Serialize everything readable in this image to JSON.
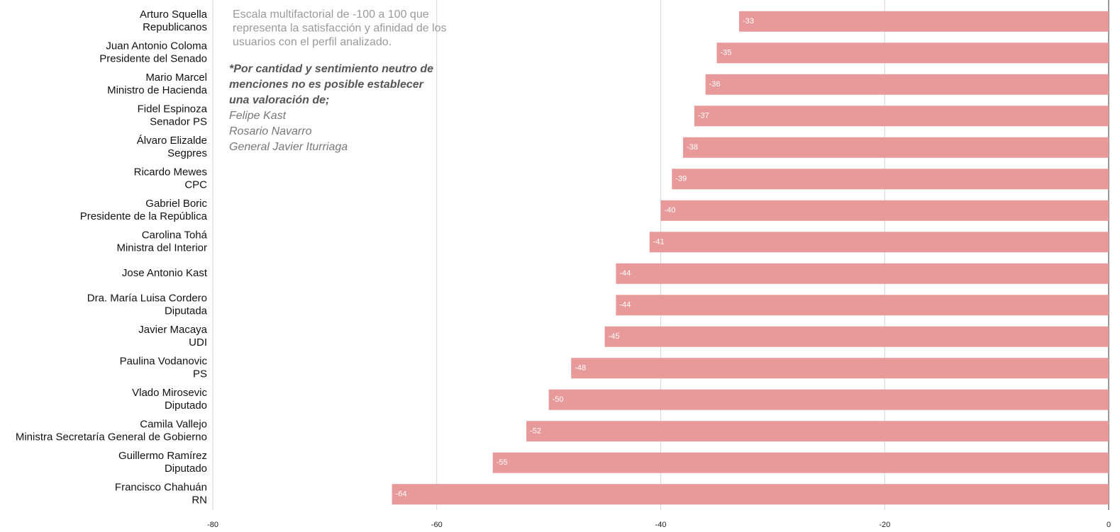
{
  "chart_data": {
    "type": "barh",
    "categories": [
      [
        "Arturo Squella",
        "Republicanos"
      ],
      [
        "Juan Antonio Coloma",
        "Presidente del Senado"
      ],
      [
        "Mario Marcel",
        "Ministro de Hacienda"
      ],
      [
        "Fidel Espinoza",
        "Senador PS"
      ],
      [
        "Álvaro Elizalde",
        "Segpres"
      ],
      [
        "Ricardo Mewes",
        "CPC"
      ],
      [
        "Gabriel Boric",
        "Presidente de la República"
      ],
      [
        "Carolina Tohá",
        "Ministra del Interior"
      ],
      [
        "Jose Antonio Kast"
      ],
      [
        "Dra. María Luisa Cordero",
        "Diputada"
      ],
      [
        "Javier Macaya",
        "UDI"
      ],
      [
        "Paulina Vodanovic",
        "PS"
      ],
      [
        "Vlado Mirosevic",
        "Diputado"
      ],
      [
        "Camila Vallejo",
        "Ministra Secretaría General de Gobierno"
      ],
      [
        "Guillermo Ramírez",
        "Diputado"
      ],
      [
        "Francisco Chahuán",
        "RN"
      ]
    ],
    "values": [
      -33,
      -35,
      -36,
      -37,
      -38,
      -39,
      -40,
      -41,
      -44,
      -44,
      -45,
      -48,
      -50,
      -52,
      -55,
      -64
    ],
    "color": "#e8999a",
    "xlim": [
      -80,
      0
    ],
    "xticks": [
      -80,
      -60,
      -40,
      -20,
      0
    ],
    "grid": true,
    "annotation": {
      "description": [
        "Escala multifactorial de -100 a 100 que",
        "representa la satisfacción y afinidad de los",
        "usuarios con el perfil analizado."
      ],
      "note": [
        "*Por cantidad y sentimiento neutro de",
        "menciones no es posible establecer",
        "una valoración de;"
      ],
      "names": [
        "Felipe Kast",
        "Rosario Navarro",
        "General Javier Iturriaga"
      ]
    }
  }
}
